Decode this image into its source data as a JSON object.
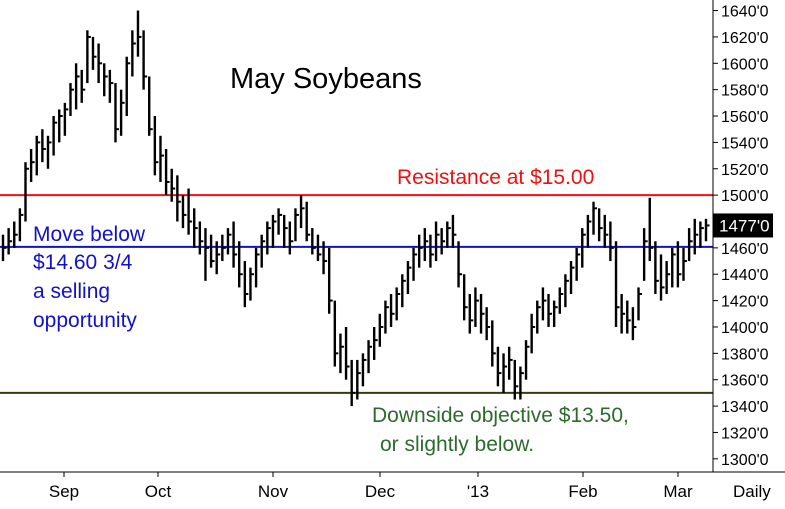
{
  "chart_data": {
    "type": "ohlc",
    "title": "May Soybeans",
    "frequency_label": "Daily",
    "y_ticks": [
      "1300'0",
      "1320'0",
      "1340'0",
      "1360'0",
      "1380'0",
      "1400'0",
      "1420'0",
      "1440'0",
      "1460'0",
      "1480'0",
      "1500'0",
      "1520'0",
      "1540'0",
      "1560'0",
      "1580'0",
      "1600'0",
      "1620'0",
      "1640'0"
    ],
    "y_range": [
      1290,
      1648
    ],
    "x_labels": [
      "Sep",
      "Oct",
      "Nov",
      "Dec",
      "'13",
      "Feb",
      "Mar"
    ],
    "last_price": 1477,
    "last_price_label": "1477'0",
    "reference_lines": [
      {
        "name": "resistance",
        "value": 1500,
        "color": "#ee1111"
      },
      {
        "name": "sell-level",
        "value": 1460.75,
        "color": "#1111cc"
      },
      {
        "name": "objective",
        "value": 1350,
        "color": "#3a3a12"
      }
    ],
    "annotations": {
      "resistance": "Resistance at $15.00",
      "sell_lines": [
        "Move below",
        "$14.60 3/4",
        "a selling",
        "opportunity"
      ],
      "objective_lines": [
        "Downside objective $13.50,",
        "or slightly below."
      ]
    },
    "colors": {
      "bars": "#000000",
      "resistance_text": "#ee1111",
      "sell_text": "#1111cc",
      "objective_text": "#2d6b2d"
    },
    "series": [
      {
        "h": 1470,
        "l": 1450,
        "c": 1460
      },
      {
        "h": 1475,
        "l": 1455,
        "c": 1465
      },
      {
        "h": 1480,
        "l": 1460,
        "c": 1470
      },
      {
        "h": 1490,
        "l": 1465,
        "c": 1485
      },
      {
        "h": 1525,
        "l": 1480,
        "c": 1520
      },
      {
        "h": 1535,
        "l": 1510,
        "c": 1525
      },
      {
        "h": 1545,
        "l": 1515,
        "c": 1540
      },
      {
        "h": 1550,
        "l": 1525,
        "c": 1535
      },
      {
        "h": 1545,
        "l": 1520,
        "c": 1540
      },
      {
        "h": 1560,
        "l": 1530,
        "c": 1555
      },
      {
        "h": 1565,
        "l": 1540,
        "c": 1560
      },
      {
        "h": 1570,
        "l": 1545,
        "c": 1565
      },
      {
        "h": 1585,
        "l": 1560,
        "c": 1580
      },
      {
        "h": 1600,
        "l": 1565,
        "c": 1590
      },
      {
        "h": 1595,
        "l": 1570,
        "c": 1580
      },
      {
        "h": 1625,
        "l": 1585,
        "c": 1620
      },
      {
        "h": 1620,
        "l": 1595,
        "c": 1605
      },
      {
        "h": 1615,
        "l": 1585,
        "c": 1600
      },
      {
        "h": 1600,
        "l": 1575,
        "c": 1590
      },
      {
        "h": 1595,
        "l": 1570,
        "c": 1585
      },
      {
        "h": 1585,
        "l": 1540,
        "c": 1550
      },
      {
        "h": 1580,
        "l": 1545,
        "c": 1570
      },
      {
        "h": 1605,
        "l": 1560,
        "c": 1600
      },
      {
        "h": 1625,
        "l": 1590,
        "c": 1615
      },
      {
        "h": 1640,
        "l": 1605,
        "c": 1620
      },
      {
        "h": 1625,
        "l": 1580,
        "c": 1590
      },
      {
        "h": 1590,
        "l": 1545,
        "c": 1550
      },
      {
        "h": 1560,
        "l": 1515,
        "c": 1525
      },
      {
        "h": 1545,
        "l": 1510,
        "c": 1530
      },
      {
        "h": 1535,
        "l": 1500,
        "c": 1510
      },
      {
        "h": 1520,
        "l": 1495,
        "c": 1505
      },
      {
        "h": 1515,
        "l": 1480,
        "c": 1495
      },
      {
        "h": 1500,
        "l": 1475,
        "c": 1485
      },
      {
        "h": 1505,
        "l": 1470,
        "c": 1480
      },
      {
        "h": 1490,
        "l": 1460,
        "c": 1475
      },
      {
        "h": 1480,
        "l": 1455,
        "c": 1465
      },
      {
        "h": 1475,
        "l": 1435,
        "c": 1460
      },
      {
        "h": 1470,
        "l": 1445,
        "c": 1450
      },
      {
        "h": 1465,
        "l": 1440,
        "c": 1455
      },
      {
        "h": 1470,
        "l": 1450,
        "c": 1460
      },
      {
        "h": 1475,
        "l": 1455,
        "c": 1470
      },
      {
        "h": 1480,
        "l": 1445,
        "c": 1455
      },
      {
        "h": 1465,
        "l": 1430,
        "c": 1440
      },
      {
        "h": 1450,
        "l": 1415,
        "c": 1425
      },
      {
        "h": 1445,
        "l": 1420,
        "c": 1440
      },
      {
        "h": 1460,
        "l": 1430,
        "c": 1455
      },
      {
        "h": 1470,
        "l": 1445,
        "c": 1465
      },
      {
        "h": 1480,
        "l": 1455,
        "c": 1475
      },
      {
        "h": 1485,
        "l": 1460,
        "c": 1480
      },
      {
        "h": 1490,
        "l": 1470,
        "c": 1485
      },
      {
        "h": 1485,
        "l": 1460,
        "c": 1475
      },
      {
        "h": 1480,
        "l": 1455,
        "c": 1465
      },
      {
        "h": 1490,
        "l": 1465,
        "c": 1485
      },
      {
        "h": 1500,
        "l": 1475,
        "c": 1490
      },
      {
        "h": 1495,
        "l": 1465,
        "c": 1470
      },
      {
        "h": 1475,
        "l": 1455,
        "c": 1460
      },
      {
        "h": 1470,
        "l": 1450,
        "c": 1455
      },
      {
        "h": 1465,
        "l": 1440,
        "c": 1450
      },
      {
        "h": 1460,
        "l": 1410,
        "c": 1420
      },
      {
        "h": 1420,
        "l": 1370,
        "c": 1380
      },
      {
        "h": 1395,
        "l": 1365,
        "c": 1385
      },
      {
        "h": 1400,
        "l": 1360,
        "c": 1370
      },
      {
        "h": 1375,
        "l": 1340,
        "c": 1350
      },
      {
        "h": 1375,
        "l": 1345,
        "c": 1365
      },
      {
        "h": 1380,
        "l": 1355,
        "c": 1375
      },
      {
        "h": 1390,
        "l": 1365,
        "c": 1385
      },
      {
        "h": 1400,
        "l": 1375,
        "c": 1390
      },
      {
        "h": 1410,
        "l": 1385,
        "c": 1400
      },
      {
        "h": 1420,
        "l": 1395,
        "c": 1415
      },
      {
        "h": 1425,
        "l": 1400,
        "c": 1410
      },
      {
        "h": 1430,
        "l": 1405,
        "c": 1425
      },
      {
        "h": 1440,
        "l": 1415,
        "c": 1435
      },
      {
        "h": 1450,
        "l": 1425,
        "c": 1445
      },
      {
        "h": 1460,
        "l": 1435,
        "c": 1455
      },
      {
        "h": 1470,
        "l": 1445,
        "c": 1460
      },
      {
        "h": 1475,
        "l": 1450,
        "c": 1465
      },
      {
        "h": 1470,
        "l": 1445,
        "c": 1455
      },
      {
        "h": 1480,
        "l": 1450,
        "c": 1470
      },
      {
        "h": 1475,
        "l": 1455,
        "c": 1465
      },
      {
        "h": 1480,
        "l": 1460,
        "c": 1475
      },
      {
        "h": 1485,
        "l": 1460,
        "c": 1470
      },
      {
        "h": 1465,
        "l": 1430,
        "c": 1440
      },
      {
        "h": 1440,
        "l": 1405,
        "c": 1415
      },
      {
        "h": 1425,
        "l": 1395,
        "c": 1405
      },
      {
        "h": 1430,
        "l": 1400,
        "c": 1420
      },
      {
        "h": 1425,
        "l": 1395,
        "c": 1410
      },
      {
        "h": 1415,
        "l": 1390,
        "c": 1400
      },
      {
        "h": 1405,
        "l": 1370,
        "c": 1380
      },
      {
        "h": 1385,
        "l": 1355,
        "c": 1365
      },
      {
        "h": 1380,
        "l": 1350,
        "c": 1370
      },
      {
        "h": 1385,
        "l": 1360,
        "c": 1375
      },
      {
        "h": 1375,
        "l": 1345,
        "c": 1355
      },
      {
        "h": 1370,
        "l": 1345,
        "c": 1365
      },
      {
        "h": 1390,
        "l": 1360,
        "c": 1385
      },
      {
        "h": 1410,
        "l": 1380,
        "c": 1400
      },
      {
        "h": 1420,
        "l": 1395,
        "c": 1415
      },
      {
        "h": 1430,
        "l": 1405,
        "c": 1420
      },
      {
        "h": 1425,
        "l": 1400,
        "c": 1410
      },
      {
        "h": 1420,
        "l": 1400,
        "c": 1415
      },
      {
        "h": 1430,
        "l": 1410,
        "c": 1425
      },
      {
        "h": 1440,
        "l": 1415,
        "c": 1435
      },
      {
        "h": 1450,
        "l": 1425,
        "c": 1445
      },
      {
        "h": 1460,
        "l": 1435,
        "c": 1455
      },
      {
        "h": 1475,
        "l": 1445,
        "c": 1470
      },
      {
        "h": 1485,
        "l": 1460,
        "c": 1480
      },
      {
        "h": 1495,
        "l": 1470,
        "c": 1490
      },
      {
        "h": 1490,
        "l": 1465,
        "c": 1475
      },
      {
        "h": 1485,
        "l": 1460,
        "c": 1470
      },
      {
        "h": 1480,
        "l": 1450,
        "c": 1460
      },
      {
        "h": 1465,
        "l": 1400,
        "c": 1415
      },
      {
        "h": 1425,
        "l": 1395,
        "c": 1410
      },
      {
        "h": 1420,
        "l": 1395,
        "c": 1405
      },
      {
        "h": 1415,
        "l": 1390,
        "c": 1400
      },
      {
        "h": 1430,
        "l": 1405,
        "c": 1425
      },
      {
        "h": 1475,
        "l": 1435,
        "c": 1465
      },
      {
        "h": 1498,
        "l": 1450,
        "c": 1460
      },
      {
        "h": 1465,
        "l": 1425,
        "c": 1435
      },
      {
        "h": 1455,
        "l": 1420,
        "c": 1430
      },
      {
        "h": 1450,
        "l": 1425,
        "c": 1440
      },
      {
        "h": 1460,
        "l": 1430,
        "c": 1455
      },
      {
        "h": 1465,
        "l": 1430,
        "c": 1440
      },
      {
        "h": 1460,
        "l": 1435,
        "c": 1450
      },
      {
        "h": 1475,
        "l": 1450,
        "c": 1465
      },
      {
        "h": 1482,
        "l": 1455,
        "c": 1470
      },
      {
        "h": 1480,
        "l": 1460,
        "c": 1475
      },
      {
        "h": 1482,
        "l": 1465,
        "c": 1477
      }
    ]
  }
}
